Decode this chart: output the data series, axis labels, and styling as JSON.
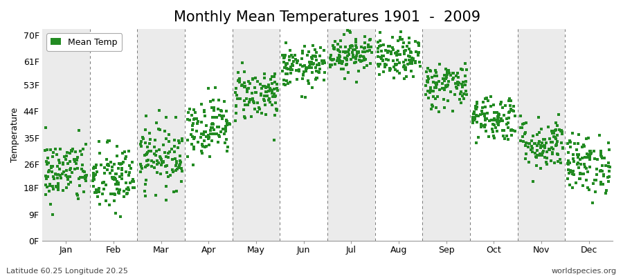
{
  "title": "Monthly Mean Temperatures 1901  -  2009",
  "ylabel": "Temperature",
  "marker_color": "#228B22",
  "background_color": "#ffffff",
  "band_color": "#ebebeb",
  "yticks": [
    0,
    9,
    18,
    26,
    35,
    44,
    53,
    61,
    70
  ],
  "ytick_labels": [
    "0F",
    "9F",
    "18F",
    "26F",
    "35F",
    "44F",
    "53F",
    "61F",
    "70F"
  ],
  "ylim": [
    0,
    72
  ],
  "months": [
    "Jan",
    "Feb",
    "Mar",
    "Apr",
    "May",
    "Jun",
    "Jul",
    "Aug",
    "Sep",
    "Oct",
    "Nov",
    "Dec"
  ],
  "month_means_f": [
    23.5,
    21.0,
    29.0,
    39.0,
    50.0,
    59.0,
    64.0,
    62.0,
    53.0,
    42.0,
    33.0,
    26.0
  ],
  "month_stds_f": [
    5.5,
    6.0,
    5.5,
    5.0,
    4.5,
    3.5,
    3.5,
    3.5,
    4.0,
    4.0,
    4.5,
    5.0
  ],
  "n_years": 109,
  "footer_left": "Latitude 60.25 Longitude 20.25",
  "footer_right": "worldspecies.org",
  "legend_label": "Mean Temp",
  "title_fontsize": 15,
  "axis_fontsize": 9,
  "tick_fontsize": 9,
  "footer_fontsize": 8
}
